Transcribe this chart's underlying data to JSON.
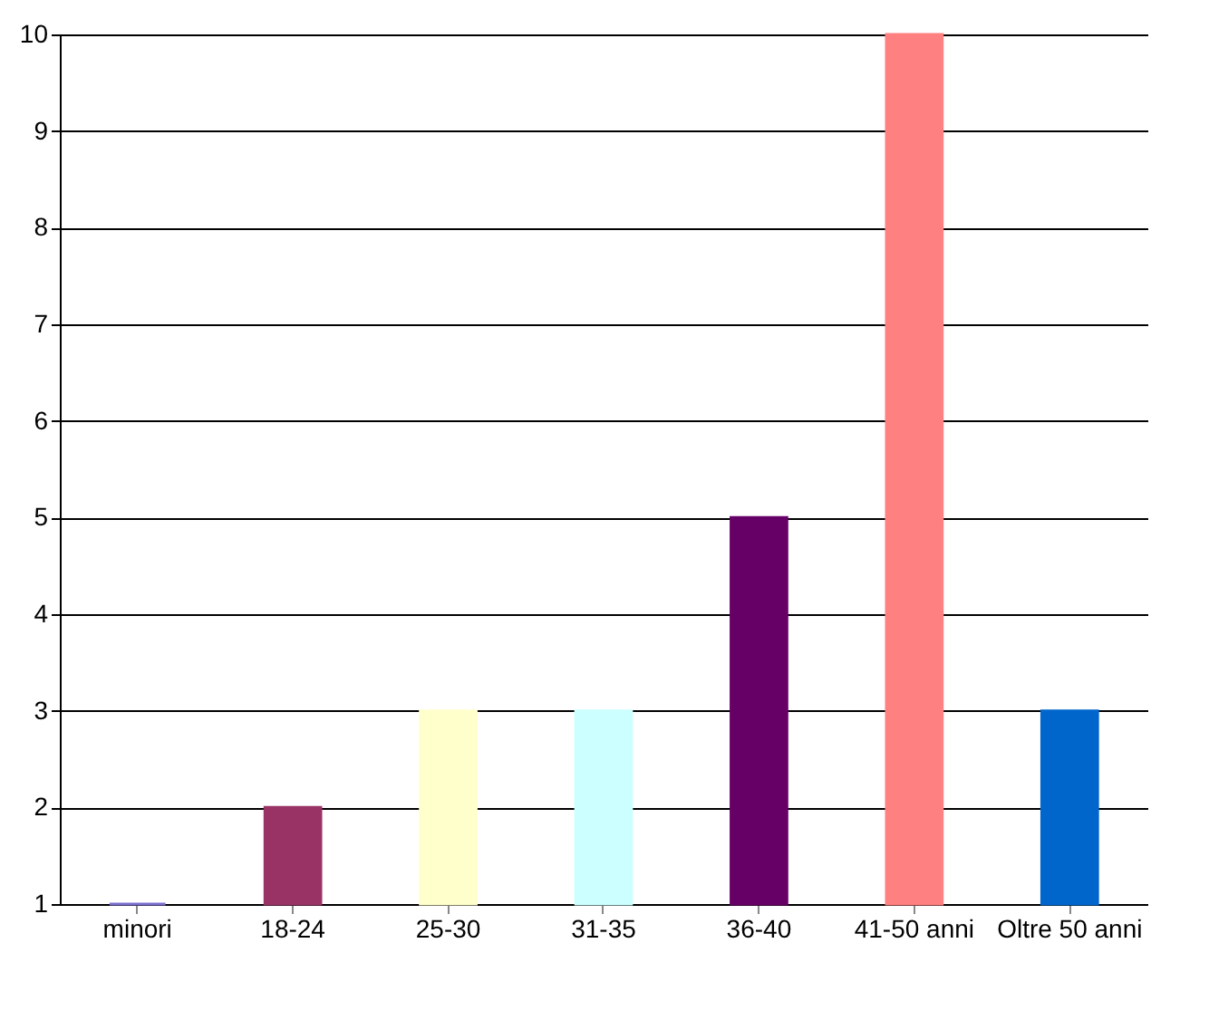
{
  "chart_data": {
    "type": "bar",
    "categories": [
      "minori",
      "18-24",
      "25-30",
      "31-35",
      "36-40",
      "41-50 anni",
      "Oltre 50 anni"
    ],
    "values": [
      1,
      2,
      3,
      3,
      5,
      10,
      3
    ],
    "colors": [
      "#7b6fd0",
      "#993366",
      "#ffffcc",
      "#ccffff",
      "#660066",
      "#ff8080",
      "#0066cc"
    ],
    "ylim": [
      1,
      10
    ],
    "yticks": [
      1,
      2,
      3,
      4,
      5,
      6,
      7,
      8,
      9,
      10
    ],
    "grid": "y",
    "legend": false
  }
}
